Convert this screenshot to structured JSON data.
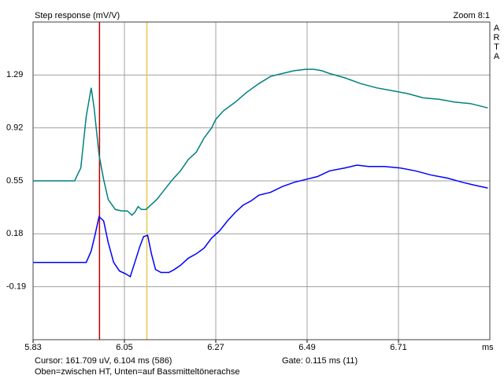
{
  "chart_data": {
    "type": "line",
    "title": "Step response (mV/V)",
    "zoom": "Zoom 8:1",
    "side_label": "ARTA",
    "x_unit": "ms",
    "xlim": [
      5.83,
      6.93
    ],
    "ylim": [
      -0.56,
      1.66
    ],
    "xticks": [
      5.83,
      6.05,
      6.27,
      6.49,
      6.71
    ],
    "yticks": [
      1.29,
      0.92,
      0.55,
      0.18,
      -0.19
    ],
    "grid": true,
    "cursors": [
      {
        "x": 5.99,
        "color": "#c00000"
      },
      {
        "x": 6.104,
        "color": "#e8c850"
      }
    ],
    "series": [
      {
        "color": "#008080",
        "x": [
          5.83,
          5.93,
          5.945,
          5.958,
          5.97,
          5.977,
          5.989,
          6.0,
          6.011,
          6.028,
          6.043,
          6.057,
          6.068,
          6.075,
          6.083,
          6.091,
          6.102,
          6.113,
          6.128,
          6.147,
          6.166,
          6.185,
          6.204,
          6.223,
          6.242,
          6.26,
          6.27,
          6.289,
          6.317,
          6.345,
          6.374,
          6.402,
          6.43,
          6.459,
          6.487,
          6.506,
          6.525,
          6.544,
          6.581,
          6.619,
          6.657,
          6.695,
          6.732,
          6.77,
          6.808,
          6.846,
          6.883,
          6.925
        ],
        "values": [
          0.55,
          0.55,
          0.64,
          1.0,
          1.2,
          1.06,
          0.73,
          0.56,
          0.42,
          0.35,
          0.34,
          0.34,
          0.31,
          0.33,
          0.37,
          0.35,
          0.35,
          0.38,
          0.42,
          0.49,
          0.56,
          0.62,
          0.7,
          0.75,
          0.85,
          0.92,
          0.98,
          1.04,
          1.1,
          1.17,
          1.23,
          1.28,
          1.3,
          1.32,
          1.33,
          1.33,
          1.32,
          1.3,
          1.27,
          1.23,
          1.2,
          1.18,
          1.16,
          1.13,
          1.12,
          1.1,
          1.09,
          1.06
        ]
      },
      {
        "color": "#0000ff",
        "x": [
          5.83,
          5.958,
          5.97,
          5.979,
          5.989,
          6.0,
          6.011,
          6.024,
          6.038,
          6.053,
          6.064,
          6.075,
          6.087,
          6.096,
          6.106,
          6.115,
          6.125,
          6.138,
          6.157,
          6.17,
          6.185,
          6.204,
          6.223,
          6.242,
          6.26,
          6.279,
          6.298,
          6.317,
          6.336,
          6.355,
          6.374,
          6.402,
          6.43,
          6.459,
          6.487,
          6.515,
          6.544,
          6.581,
          6.61,
          6.638,
          6.676,
          6.714,
          6.751,
          6.789,
          6.827,
          6.864,
          6.893,
          6.925
        ],
        "values": [
          -0.02,
          -0.02,
          0.06,
          0.17,
          0.3,
          0.27,
          0.12,
          -0.02,
          -0.08,
          -0.1,
          -0.12,
          -0.02,
          0.09,
          0.16,
          0.17,
          0.04,
          -0.07,
          -0.09,
          -0.09,
          -0.07,
          -0.04,
          0.01,
          0.04,
          0.08,
          0.15,
          0.2,
          0.27,
          0.33,
          0.38,
          0.41,
          0.45,
          0.47,
          0.51,
          0.54,
          0.56,
          0.58,
          0.62,
          0.64,
          0.66,
          0.65,
          0.65,
          0.64,
          0.62,
          0.59,
          0.57,
          0.54,
          0.52,
          0.5
        ]
      }
    ],
    "annotations": [
      "Cursor: 161.709 uV,   6.104 ms  (586)",
      "Gate:   0.115 ms  (11)",
      "Oben=zwischen HT, Unten=auf Bassmitteltönerachse"
    ]
  }
}
